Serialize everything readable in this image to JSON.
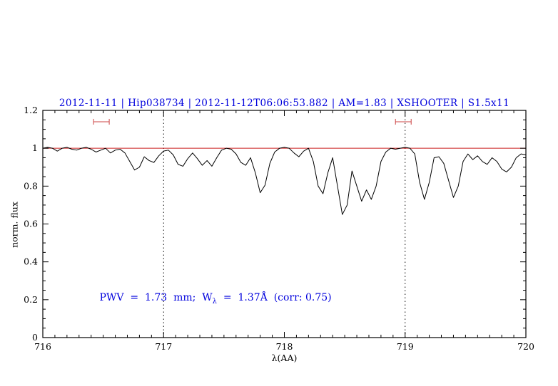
{
  "colors": {
    "title_blue": "#0000dd",
    "annotation_blue": "#0000dd",
    "continuum_red": "#cc2222",
    "marker_red": "#cc4444",
    "axis_black": "#000000"
  },
  "chart_data": {
    "type": "line",
    "title": "2012-11-11 | Hip038734 | 2012-11-12T06:06:53.882 | AM=1.83 | XSHOOTER | S1.5x11",
    "xlabel": "λ(AA)",
    "ylabel": "norm. flux",
    "xlim": [
      716,
      720
    ],
    "ylim": [
      0,
      1.2
    ],
    "x_ticks": [
      716,
      717,
      718,
      719,
      720
    ],
    "x_tick_labels": [
      "716",
      "717",
      "718",
      "719",
      "720"
    ],
    "x_minor_step": 0.1,
    "y_ticks": [
      0,
      0.2,
      0.4,
      0.6,
      0.8,
      1.0,
      1.2
    ],
    "y_tick_labels": [
      "0",
      "0.2",
      "0.4",
      "0.6",
      "0.8",
      "1",
      "1.2"
    ],
    "y_minor_step": 0.05,
    "grid": false,
    "legend": "none",
    "vlines": {
      "x": [
        717,
        719
      ],
      "style": "dotted",
      "color": "#000000"
    },
    "hlines": {
      "y": [
        1.0
      ],
      "color": "#cc2222",
      "name": "continuum-fit"
    },
    "range_markers": [
      {
        "x1": 716.42,
        "x2": 716.55,
        "y": 1.14,
        "color": "#cc4444"
      },
      {
        "x1": 718.92,
        "x2": 719.05,
        "y": 1.14,
        "color": "#cc4444"
      }
    ],
    "annotation": {
      "x": 716.47,
      "y": 0.19,
      "color": "#0000dd",
      "text_parts": [
        "PWV  =  1.73  mm;  W",
        "λ",
        "  =  1.37Å  (corr: 0.75)"
      ]
    },
    "series": [
      {
        "name": "telluric-spectrum",
        "color": "#000000",
        "x_start": 716.0,
        "x_step": 0.04,
        "flux": [
          1.0,
          1.005,
          1.0,
          0.985,
          1.0,
          1.005,
          0.995,
          0.99,
          1.0,
          1.005,
          0.995,
          0.98,
          0.99,
          1.0,
          0.975,
          0.99,
          0.995,
          0.975,
          0.93,
          0.885,
          0.9,
          0.955,
          0.935,
          0.925,
          0.96,
          0.985,
          0.99,
          0.965,
          0.915,
          0.905,
          0.945,
          0.975,
          0.945,
          0.91,
          0.935,
          0.905,
          0.95,
          0.99,
          1.0,
          0.995,
          0.97,
          0.925,
          0.91,
          0.95,
          0.87,
          0.765,
          0.805,
          0.92,
          0.98,
          1.0,
          1.005,
          1.0,
          0.975,
          0.955,
          0.985,
          1.0,
          0.93,
          0.8,
          0.76,
          0.87,
          0.95,
          0.8,
          0.65,
          0.7,
          0.88,
          0.8,
          0.72,
          0.78,
          0.73,
          0.8,
          0.93,
          0.98,
          1.0,
          0.995,
          1.0,
          1.005,
          1.0,
          0.97,
          0.82,
          0.73,
          0.82,
          0.95,
          0.955,
          0.92,
          0.83,
          0.74,
          0.8,
          0.93,
          0.97,
          0.94,
          0.96,
          0.93,
          0.915,
          0.95,
          0.93,
          0.89,
          0.875,
          0.9,
          0.95,
          0.97,
          0.965
        ]
      },
      {
        "name": "continuum-line",
        "color": "#cc2222",
        "y_const": 1.0
      }
    ]
  }
}
